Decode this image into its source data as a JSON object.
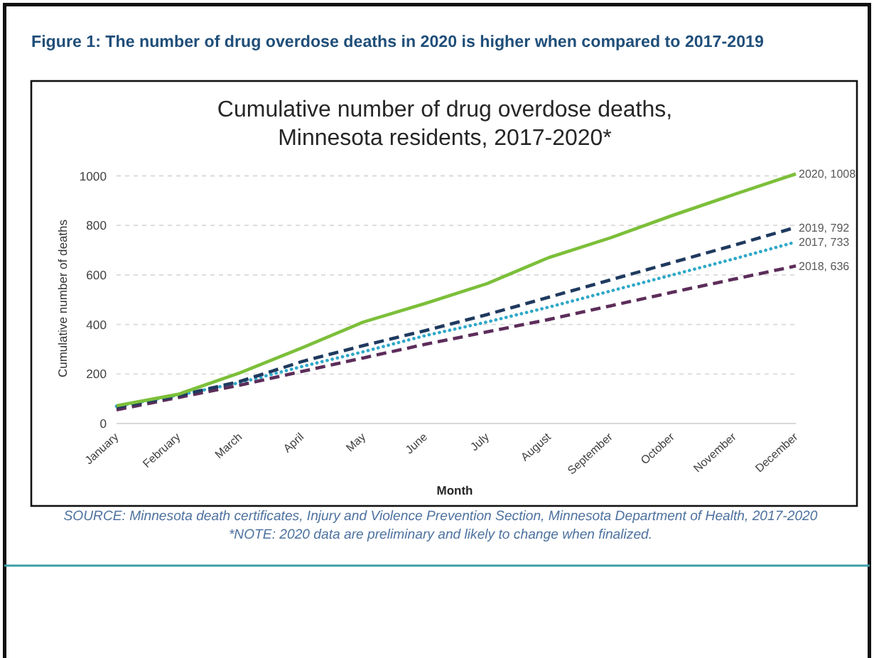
{
  "chart_data": {
    "type": "line",
    "title": "Figure 1: The number of drug overdose deaths in 2020 is higher when compared to 2017-2019",
    "subtitle": "Cumulative number of drug overdose deaths, Minnesota residents, 2017-2020*",
    "xlabel": "Month",
    "ylabel": "Cumulative number of deaths",
    "categories": [
      "January",
      "February",
      "March",
      "April",
      "May",
      "June",
      "July",
      "August",
      "September",
      "October",
      "November",
      "December"
    ],
    "series": [
      {
        "color": "#2fa8c8",
        "line_style": "dotted",
        "values": [
          70,
          115,
          165,
          230,
          290,
          355,
          410,
          470,
          535,
          600,
          665,
          733
        ]
      },
      {
        "color": "#5c2d5a",
        "line_style": "dashed",
        "values": [
          55,
          105,
          155,
          210,
          265,
          320,
          370,
          420,
          475,
          530,
          583,
          636
        ]
      },
      {
        "color": "#1f3a5f",
        "line_style": "dashed",
        "values": [
          65,
          112,
          170,
          250,
          315,
          375,
          440,
          510,
          580,
          650,
          720,
          792
        ]
      },
      {
        "color": "#7cbf3a",
        "line_style": "solid",
        "values": [
          72,
          118,
          205,
          305,
          410,
          485,
          565,
          670,
          750,
          840,
          925,
          1008
        ]
      }
    ],
    "ylim": [
      0,
      1010
    ],
    "yticks": [
      0,
      200,
      400,
      600,
      800,
      1000
    ],
    "grid": "y",
    "annotations": [
      {
        "text": "2020, 1008",
        "x": "December",
        "y": 1008
      },
      {
        "text": "2019, 792",
        "x": "December",
        "y": 792
      },
      {
        "text": "2017, 733",
        "x": "December",
        "y": 733
      },
      {
        "text": "2018, 636",
        "x": "December",
        "y": 636
      },
      "SOURCE: Minnesota death certificates, Injury and Violence Prevention Section, Minnesota Department of Health, 2017-2020",
      "*NOTE: 2020 data are preliminary and likely to change when finalized."
    ]
  }
}
